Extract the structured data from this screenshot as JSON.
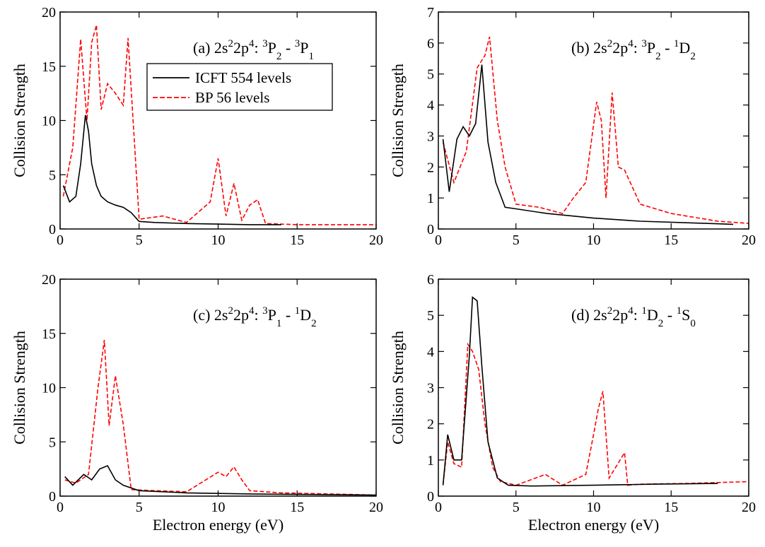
{
  "figure": {
    "legend": {
      "placement": "upper-middle of panel (a)",
      "entries": [
        {
          "label": "ICFT 554 levels",
          "color": "#000000",
          "style": "solid"
        },
        {
          "label": "BP 56 levels",
          "color": "#ff0000",
          "style": "dashed"
        }
      ]
    }
  },
  "chart_data": [
    {
      "type": "line",
      "panel": "a",
      "title_parts": {
        "prefix": "(a)  2s",
        "t1": "2",
        "mid1": "2p",
        "t2": "4",
        "mid2": ": ",
        "t3": "3",
        "mid3": "P",
        "t4": "2",
        "mid4": " - ",
        "t5": "3",
        "mid5": "P",
        "t6": "1"
      },
      "xlabel": "",
      "ylabel": "Collision Strength",
      "xlim": [
        0,
        20
      ],
      "ylim": [
        0,
        20
      ],
      "xticks": [
        "0",
        "5",
        "10",
        "15",
        "20"
      ],
      "yticks": [
        "0",
        "5",
        "10",
        "15",
        "20"
      ],
      "grid": false,
      "series": [
        {
          "name": "ICFT 554 levels",
          "color": "#000000",
          "style": "solid",
          "x": [
            0.2,
            0.6,
            1.0,
            1.3,
            1.6,
            1.8,
            2.0,
            2.3,
            2.6,
            3.0,
            3.5,
            4.0,
            4.5,
            5.0,
            6.0,
            8.0,
            10.0,
            12.0,
            14.0
          ],
          "y": [
            4,
            2.5,
            3,
            6,
            10.5,
            9,
            6,
            4,
            3,
            2.5,
            2.2,
            2,
            1.5,
            0.7,
            0.6,
            0.5,
            0.45,
            0.4,
            0.4
          ]
        },
        {
          "name": "BP 56 levels",
          "color": "#ff0000",
          "style": "dashed",
          "x": [
            0.2,
            0.8,
            1.3,
            1.7,
            2.0,
            2.3,
            2.6,
            3.0,
            3.5,
            4.0,
            4.3,
            5.0,
            6.5,
            8.0,
            9.5,
            10.0,
            10.5,
            11.0,
            11.5,
            12.0,
            12.5,
            13.0,
            15.0,
            20.0
          ],
          "y": [
            3,
            7.5,
            17.5,
            10,
            17.2,
            18.8,
            11,
            13.4,
            12.5,
            11.4,
            17.6,
            0.9,
            1.2,
            0.6,
            2.5,
            6.5,
            1.2,
            4.2,
            0.8,
            2.2,
            2.7,
            0.5,
            0.4,
            0.4
          ]
        }
      ]
    },
    {
      "type": "line",
      "panel": "b",
      "title_parts": {
        "prefix": "(b)  2s",
        "t1": "2",
        "mid1": "2p",
        "t2": "4",
        "mid2": ": ",
        "t3": "3",
        "mid3": "P",
        "t4": "2",
        "mid4": " - ",
        "t5": "1",
        "mid5": "D",
        "t6": "2"
      },
      "xlabel": "",
      "ylabel": "Collision Strength",
      "xlim": [
        0,
        20
      ],
      "ylim": [
        0,
        7
      ],
      "xticks": [
        "0",
        "5",
        "10",
        "15",
        "20"
      ],
      "yticks": [
        "0",
        "1",
        "2",
        "3",
        "4",
        "5",
        "6",
        "7"
      ],
      "grid": false,
      "series": [
        {
          "name": "ICFT 554 levels",
          "color": "#000000",
          "style": "solid",
          "x": [
            0.3,
            0.7,
            1.2,
            1.6,
            2.0,
            2.4,
            2.8,
            3.2,
            3.7,
            4.3,
            5.0,
            7.0,
            10.0,
            13.0,
            16.0,
            19.0
          ],
          "y": [
            2.9,
            1.2,
            2.9,
            3.3,
            3.0,
            3.4,
            5.3,
            2.8,
            1.5,
            0.7,
            0.65,
            0.5,
            0.35,
            0.25,
            0.2,
            0.15
          ]
        },
        {
          "name": "BP 56 levels",
          "color": "#ff0000",
          "style": "dashed",
          "x": [
            0.3,
            1.0,
            1.8,
            2.5,
            3.0,
            3.3,
            3.8,
            4.3,
            5.0,
            6.5,
            8.0,
            8.7,
            9.5,
            10.2,
            10.5,
            10.8,
            11.2,
            11.6,
            12.0,
            13.0,
            15.0,
            18.0,
            20.0
          ],
          "y": [
            2.8,
            1.5,
            2.5,
            5.2,
            5.6,
            6.2,
            3.5,
            2.0,
            0.8,
            0.7,
            0.5,
            1.0,
            1.5,
            4.1,
            3.5,
            1.0,
            4.4,
            2.0,
            1.9,
            0.8,
            0.5,
            0.25,
            0.18
          ]
        }
      ]
    },
    {
      "type": "line",
      "panel": "c",
      "title_parts": {
        "prefix": "(c)  2s",
        "t1": "2",
        "mid1": "2p",
        "t2": "4",
        "mid2": ": ",
        "t3": "3",
        "mid3": "P",
        "t4": "1",
        "mid4": " - ",
        "t5": "1",
        "mid5": "D",
        "t6": "2"
      },
      "xlabel": "Electron energy (eV)",
      "ylabel": "Collision Strength",
      "xlim": [
        0,
        20
      ],
      "ylim": [
        0,
        20
      ],
      "xticks": [
        "0",
        "5",
        "10",
        "15",
        "20"
      ],
      "yticks": [
        "0",
        "5",
        "10",
        "15",
        "20"
      ],
      "grid": false,
      "series": [
        {
          "name": "ICFT 554 levels",
          "color": "#000000",
          "style": "solid",
          "x": [
            0.3,
            0.8,
            1.5,
            2.0,
            2.5,
            3.0,
            3.5,
            4.0,
            5.0,
            8.0,
            12.0,
            16.0,
            20.0
          ],
          "y": [
            1.8,
            1.0,
            2.0,
            1.5,
            2.5,
            2.8,
            1.5,
            1.0,
            0.5,
            0.3,
            0.2,
            0.15,
            0.1
          ]
        },
        {
          "name": "BP 56 levels",
          "color": "#ff0000",
          "style": "dashed",
          "x": [
            0.3,
            1.0,
            1.8,
            2.4,
            2.8,
            3.1,
            3.5,
            4.0,
            4.5,
            6.0,
            8.0,
            10.0,
            10.5,
            11.0,
            11.5,
            12.0,
            14.0,
            17.0,
            20.0
          ],
          "y": [
            1.5,
            1.2,
            2.0,
            10.0,
            14.4,
            6.5,
            11.1,
            6.6,
            0.6,
            0.5,
            0.4,
            2.2,
            1.8,
            2.7,
            1.5,
            0.5,
            0.3,
            0.2,
            0.1
          ]
        }
      ]
    },
    {
      "type": "line",
      "panel": "d",
      "title_parts": {
        "prefix": "(d)  2s",
        "t1": "2",
        "mid1": "2p",
        "t2": "4",
        "mid2": ": ",
        "t3": "1",
        "mid3": "D",
        "t4": "2",
        "mid4": " - ",
        "t5": "1",
        "mid5": "S",
        "t6": "0"
      },
      "xlabel": "Electron energy (eV)",
      "ylabel": "Collision Strength",
      "xlim": [
        0,
        20
      ],
      "ylim": [
        0,
        6
      ],
      "xticks": [
        "0",
        "5",
        "10",
        "15",
        "20"
      ],
      "yticks": [
        "0",
        "1",
        "2",
        "3",
        "4",
        "5",
        "6"
      ],
      "grid": false,
      "series": [
        {
          "name": "ICFT 554 levels",
          "color": "#000000",
          "style": "solid",
          "x": [
            0.3,
            0.6,
            1.0,
            1.5,
            2.0,
            2.2,
            2.5,
            2.8,
            3.2,
            3.8,
            4.5,
            6.0,
            10.0,
            14.0,
            18.0
          ],
          "y": [
            0.3,
            1.7,
            1.0,
            1.0,
            3.9,
            5.5,
            5.4,
            3.6,
            1.5,
            0.5,
            0.3,
            0.28,
            0.3,
            0.33,
            0.35
          ]
        },
        {
          "name": "BP 56 levels",
          "color": "#ff0000",
          "style": "dashed",
          "x": [
            0.3,
            0.6,
            1.0,
            1.5,
            1.9,
            2.2,
            2.6,
            3.0,
            3.5,
            4.0,
            5.0,
            6.9,
            8.0,
            9.5,
            10.0,
            10.3,
            10.6,
            11.0,
            12.0,
            12.2,
            13.0,
            16.0,
            20.0
          ],
          "y": [
            0.3,
            1.5,
            0.9,
            0.8,
            4.2,
            4.0,
            3.5,
            2.0,
            0.8,
            0.4,
            0.3,
            0.6,
            0.3,
            0.6,
            1.7,
            2.4,
            2.9,
            0.5,
            1.2,
            0.3,
            0.33,
            0.35,
            0.4
          ]
        }
      ]
    }
  ]
}
